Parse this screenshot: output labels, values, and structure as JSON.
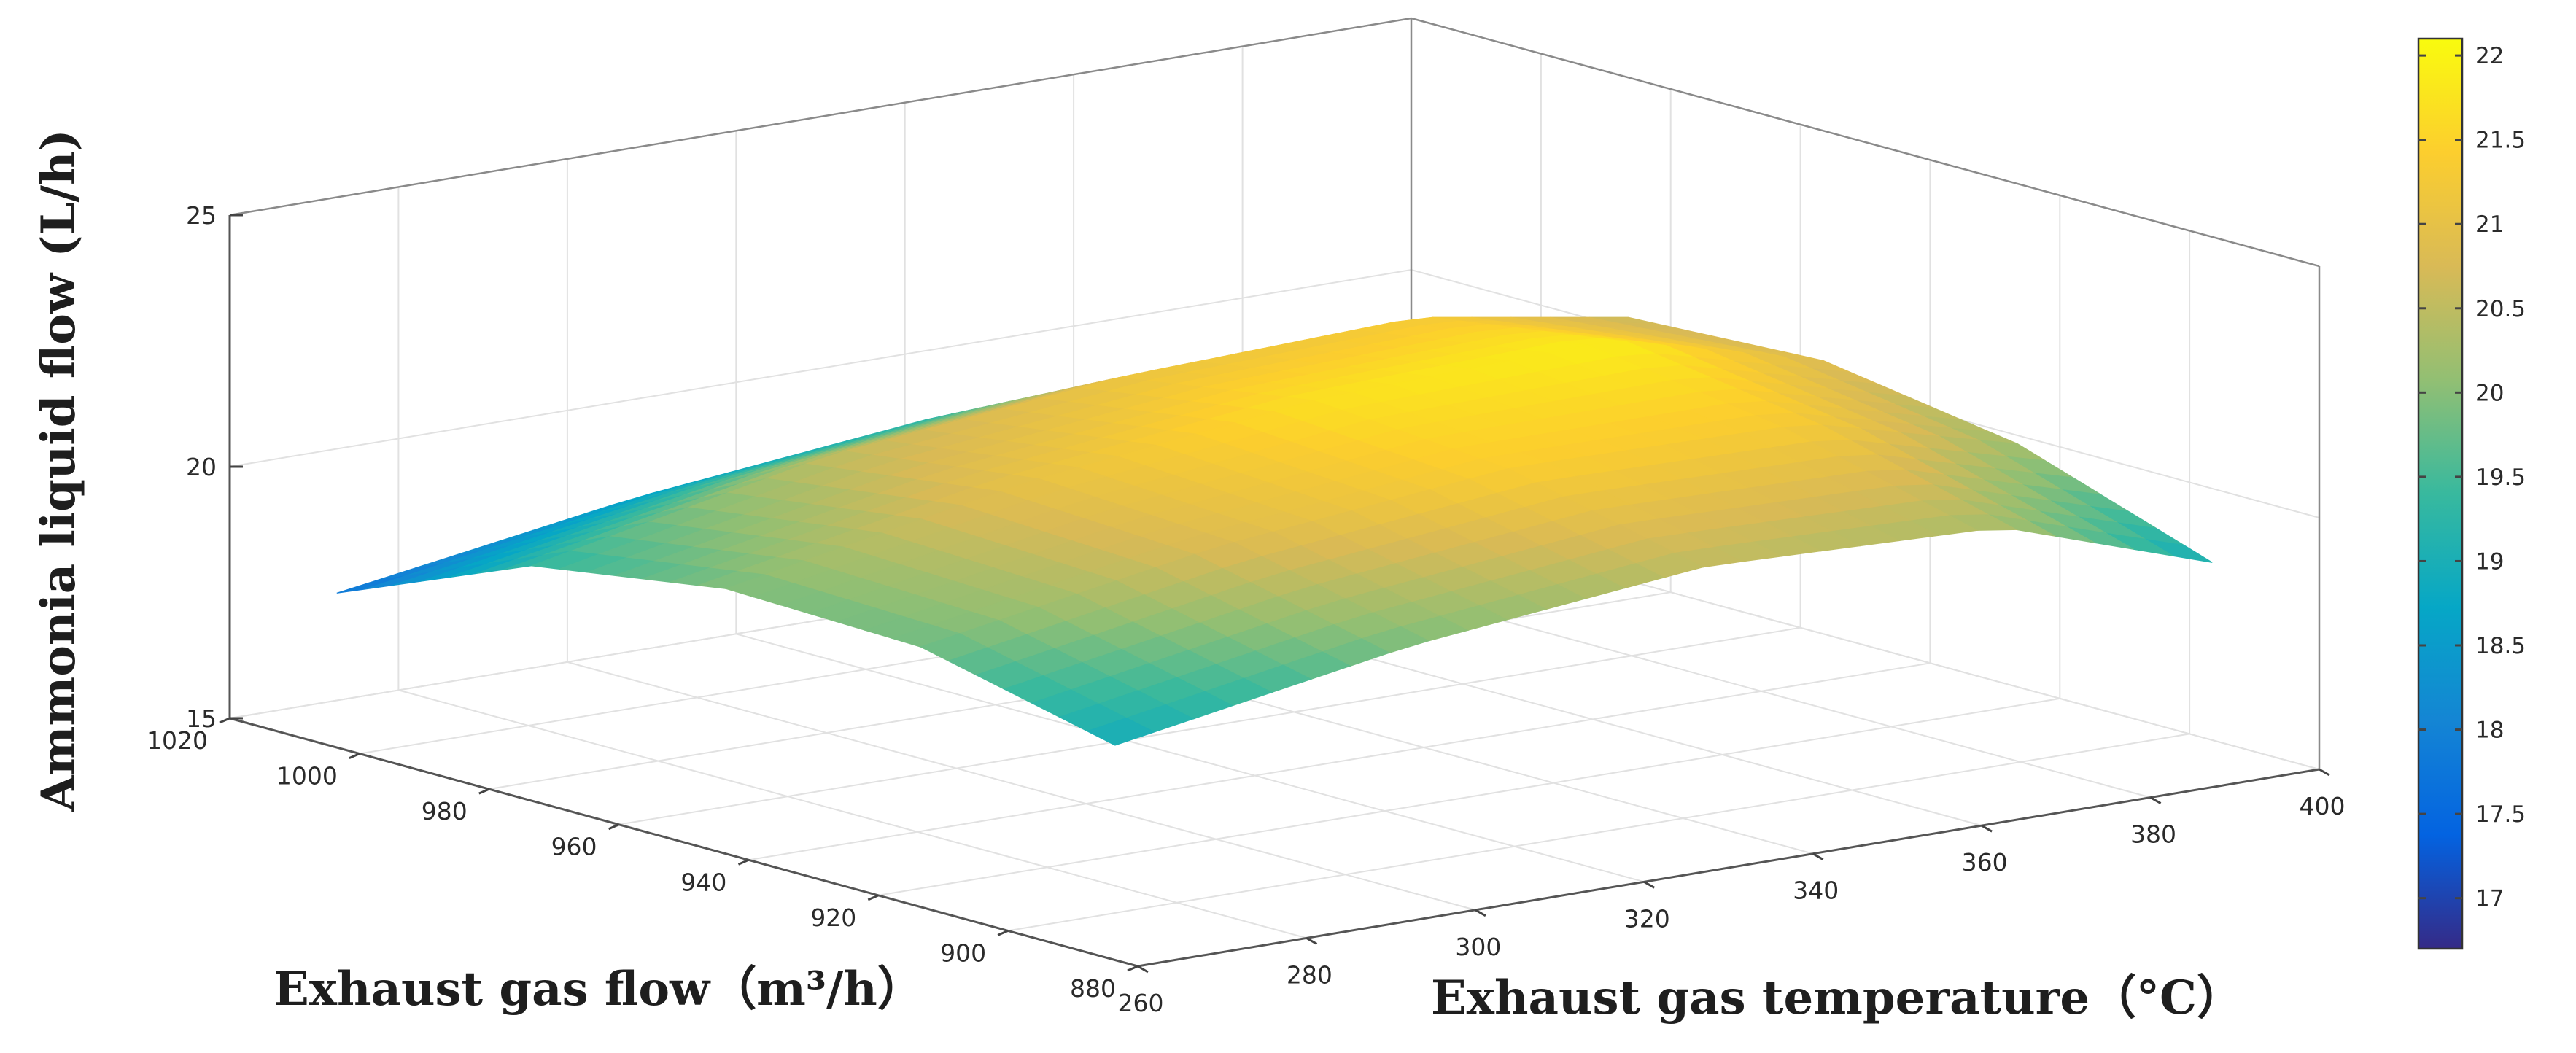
{
  "chart_data": {
    "type": "surface",
    "title": "",
    "xlabel": "Exhaust gas flow（m³/h）",
    "ylabel": "Exhaust gas temperature（°C）",
    "zlabel": "Ammonia liquid flow (L/h)",
    "x_ticks": [
      "880",
      "900",
      "920",
      "940",
      "960",
      "980",
      "1000",
      "1020"
    ],
    "y_ticks": [
      "260",
      "280",
      "300",
      "320",
      "340",
      "360",
      "380",
      "400"
    ],
    "z_ticks": [
      "15",
      "20",
      "25"
    ],
    "xlim": [
      880,
      1020
    ],
    "ylim": [
      260,
      400
    ],
    "zlim": [
      15,
      25
    ],
    "grid": true,
    "colormap": "parula",
    "colorbar": {
      "range": [
        16.7,
        22.1
      ],
      "ticks": [
        "17",
        "17.5",
        "18",
        "18.5",
        "19",
        "19.5",
        "20",
        "20.5",
        "21",
        "21.5",
        "22"
      ]
    },
    "x": [
      890,
      920,
      950,
      980,
      1010
    ],
    "y": [
      265,
      300,
      335,
      370,
      395
    ],
    "z": [
      [
        18.9,
        19.8,
        19.9,
        19.3,
        17.7
      ],
      [
        19.9,
        20.8,
        21.0,
        20.5,
        18.6
      ],
      [
        20.5,
        21.4,
        21.7,
        21.1,
        19.2
      ],
      [
        20.3,
        21.3,
        21.9,
        21.3,
        19.1
      ],
      [
        18.9,
        20.2,
        20.8,
        20.6,
        18.6
      ]
    ]
  },
  "colors": {
    "parula": [
      "#352a87",
      "#0363e1",
      "#1485d4",
      "#06a7c6",
      "#38b99e",
      "#92bf73",
      "#d9ba56",
      "#fcce2e",
      "#f9fb0e"
    ]
  }
}
